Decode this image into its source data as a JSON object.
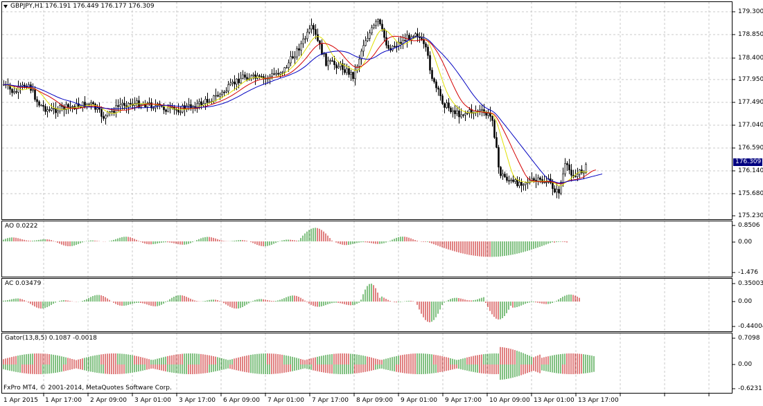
{
  "main": {
    "title": "GBPJPY,H1  176.191 176.449 176.177 176.309",
    "current_price": "176.309",
    "price_ticks": [
      "179.300",
      "178.850",
      "178.400",
      "177.950",
      "177.490",
      "177.040",
      "176.590",
      "176.140",
      "175.680",
      "175.230"
    ],
    "ma_colors": {
      "fast": "#e0e000",
      "mid": "#d40000",
      "slow": "#0000c0"
    }
  },
  "ao": {
    "title": "AO 0.0222",
    "ticks": [
      "0.8506",
      "0.00",
      "-1.476"
    ],
    "colors": {
      "up": "#008000",
      "down": "#c00000"
    }
  },
  "ac": {
    "title": "AC 0.03479",
    "ticks": [
      "0.35003",
      "0.00",
      "-0.44004"
    ]
  },
  "gator": {
    "title": "Gator(13,8,5) 0.1087 -0.0018",
    "ticks": [
      "0.7098",
      "0.00",
      "-0.6231"
    ]
  },
  "copyright": "FxPro MT4, © 2001-2014, MetaQuotes Software Corp.",
  "time_axis": [
    "1 Apr 2015",
    "1 Apr 17:00",
    "2 Apr 09:00",
    "3 Apr 01:00",
    "3 Apr 17:00",
    "6 Apr 09:00",
    "7 Apr 01:00",
    "7 Apr 17:00",
    "8 Apr 09:00",
    "9 Apr 01:00",
    "9 Apr 17:00",
    "10 Apr 09:00",
    "13 Apr 01:00",
    "13 Apr 17:00"
  ]
}
